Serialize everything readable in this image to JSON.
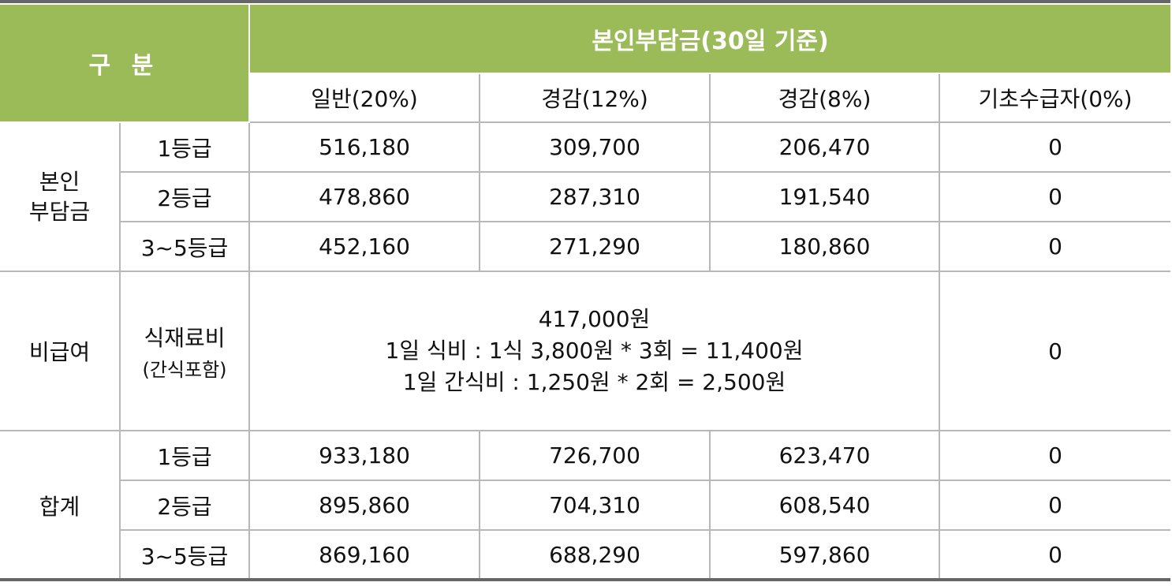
{
  "header": {
    "category": "구 분",
    "main": "본인부담금(30일 기준)",
    "columns": [
      "일반(20%)",
      "경감(12%)",
      "경감(8%)",
      "기초수급자(0%)"
    ]
  },
  "sections": {
    "copay": {
      "label_line1": "본인",
      "label_line2": "부담금",
      "rows": [
        {
          "grade": "1등급",
          "values": [
            "516,180",
            "309,700",
            "206,470",
            "0"
          ]
        },
        {
          "grade": "2등급",
          "values": [
            "478,860",
            "287,310",
            "191,540",
            "0"
          ]
        },
        {
          "grade": "3~5등급",
          "values": [
            "452,160",
            "271,290",
            "180,860",
            "0"
          ]
        }
      ]
    },
    "noncovered": {
      "label": "비급여",
      "item": "식재료비",
      "item_note": "(간식포함)",
      "line1": "417,000원",
      "line2": "1일 식비 : 1식 3,800원 * 3회 = 11,400원",
      "line3": "1일 간식비 : 1,250원 * 2회 = 2,500원",
      "basic": "0"
    },
    "total": {
      "label": "합계",
      "rows": [
        {
          "grade": "1등급",
          "values": [
            "933,180",
            "726,700",
            "623,470",
            "0"
          ]
        },
        {
          "grade": "2등급",
          "values": [
            "895,860",
            "704,310",
            "608,540",
            "0"
          ]
        },
        {
          "grade": "3~5등급",
          "values": [
            "869,160",
            "688,290",
            "597,860",
            "0"
          ]
        }
      ]
    }
  },
  "colors": {
    "header_green": "#9bbb59",
    "header_text": "#ffffff",
    "grid": "#b8b8b8",
    "edge_bar": "#666666"
  }
}
